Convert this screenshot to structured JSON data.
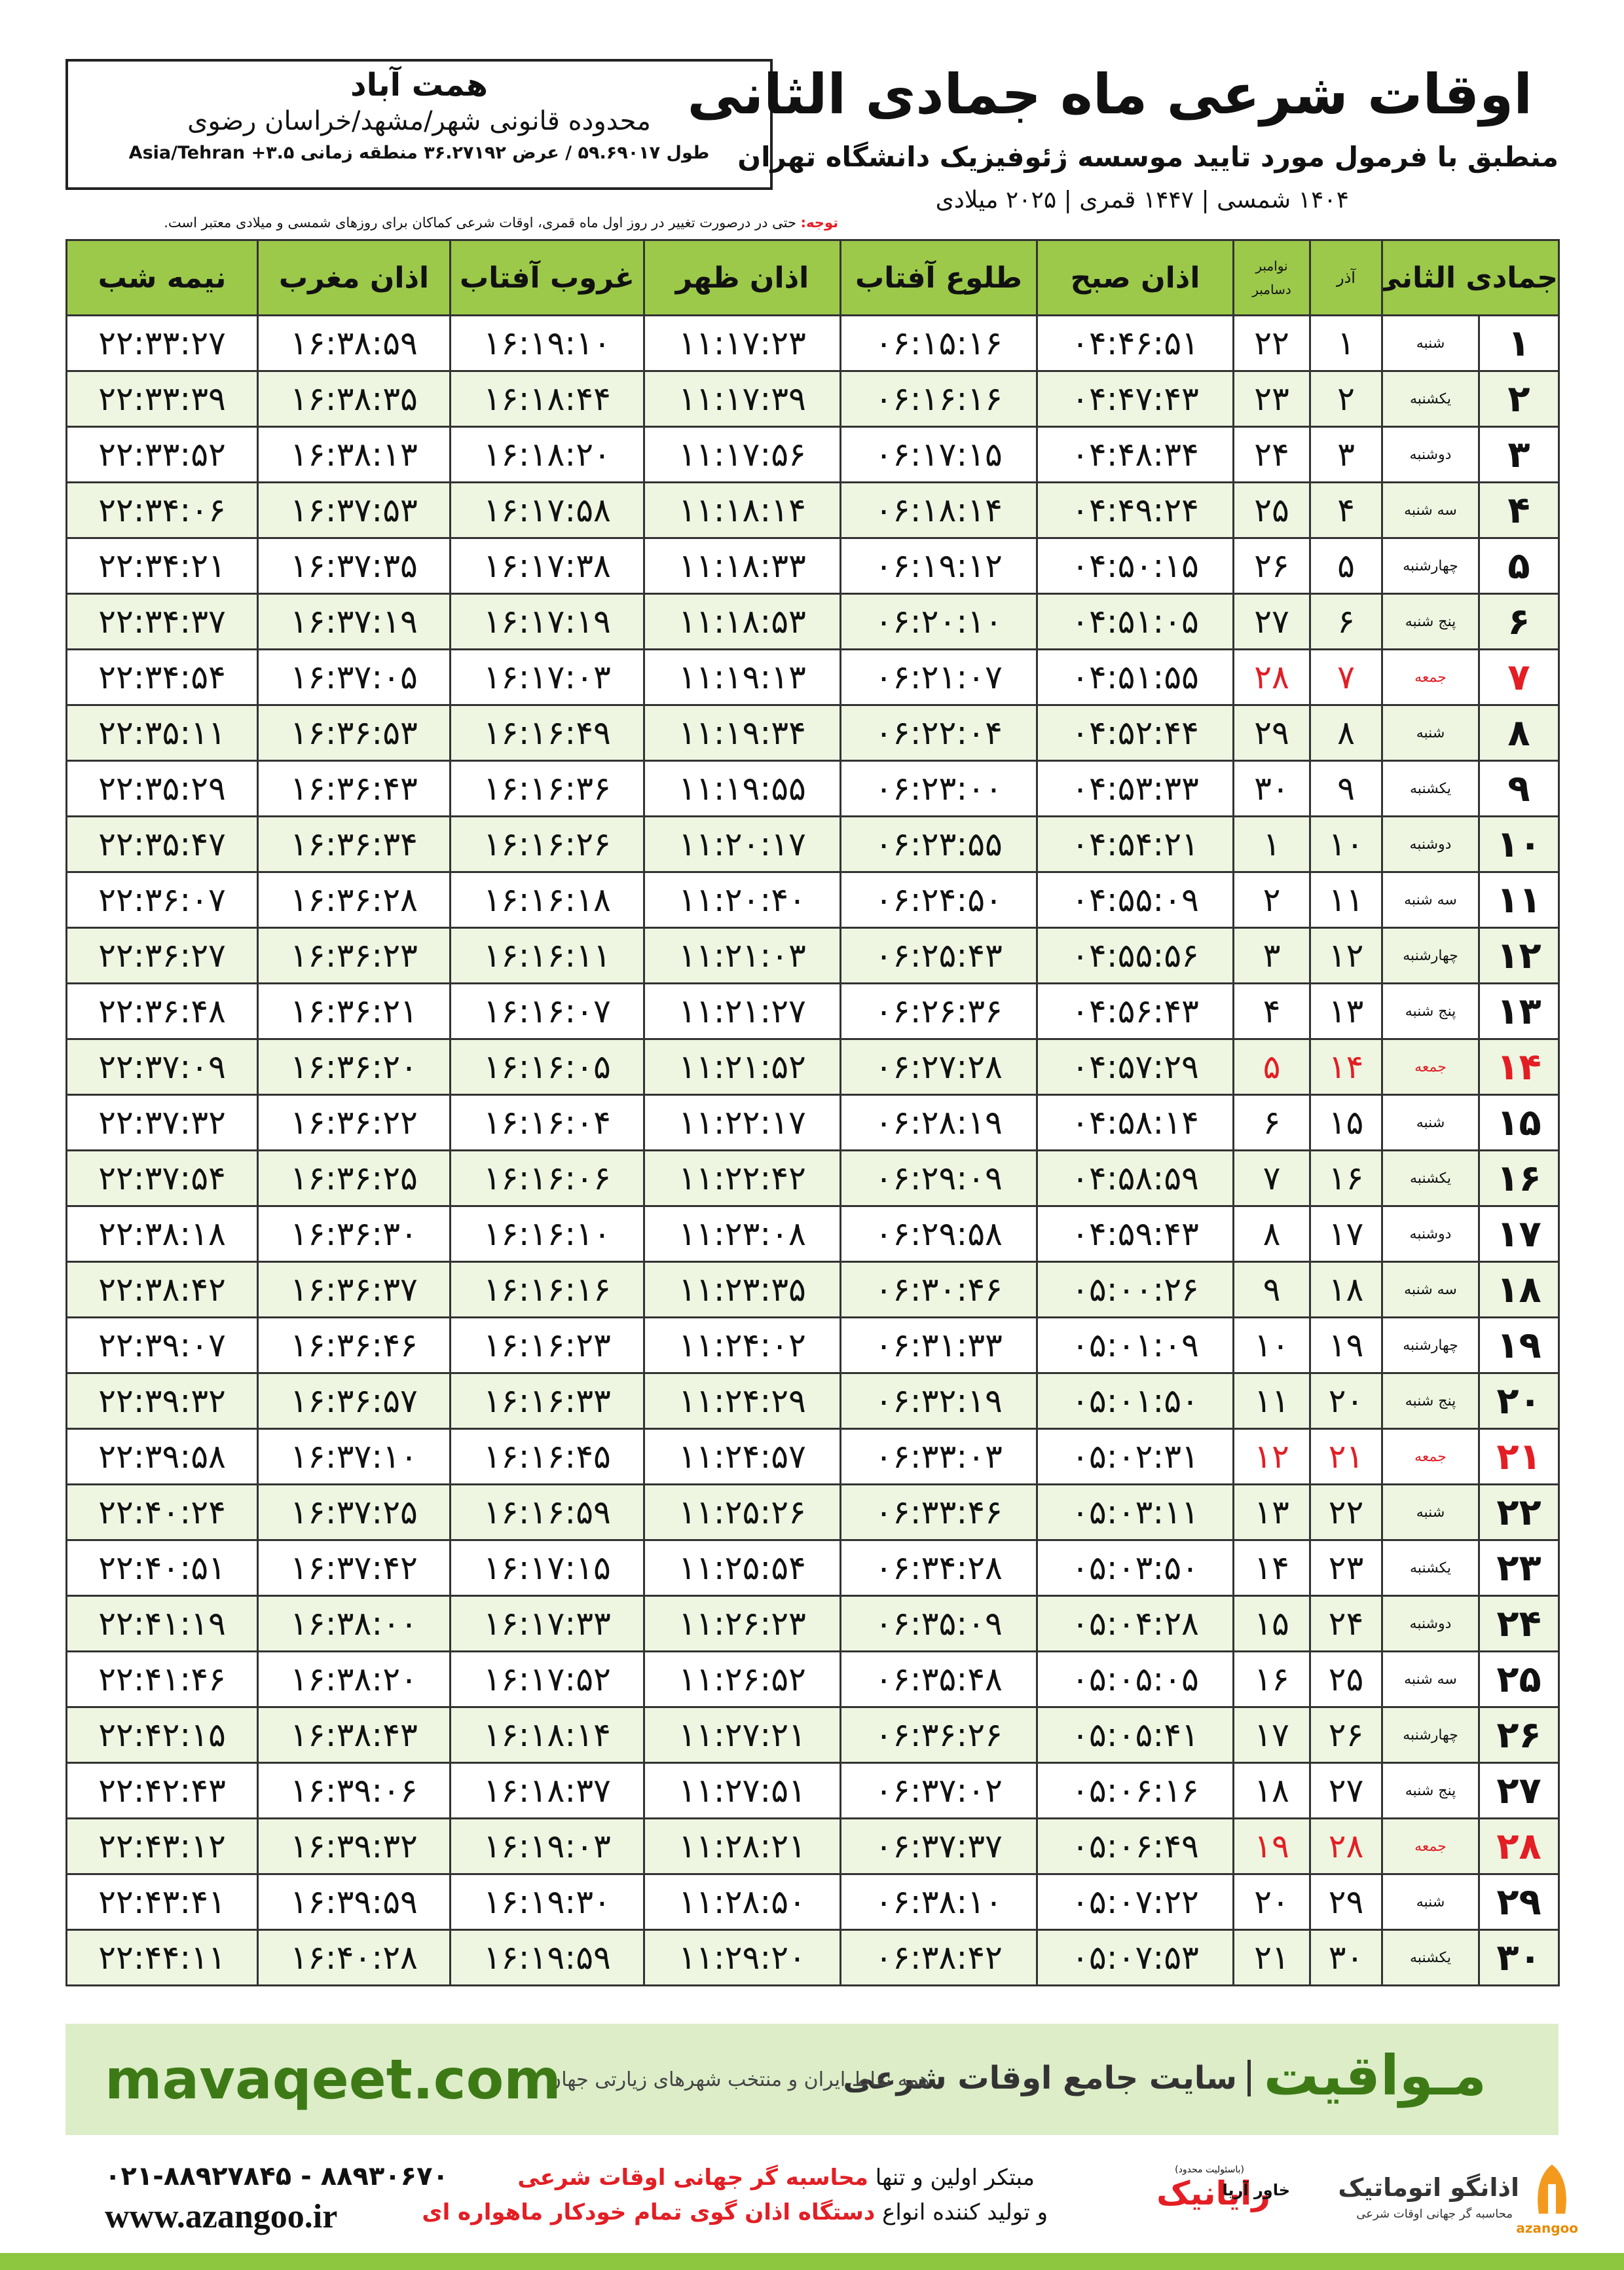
{
  "header": {
    "title": "اوقات شرعی ماه جمادی الثانی",
    "subtitle": "منطبق با فرمول مورد تایید موسسه ژئوفیزیک دانشگاه تهران",
    "dates": "۱۴۰۴ شمسی | ۱۴۴۷ قمری | ۲۰۲۵ میلادی"
  },
  "location": {
    "city": "همت آباد",
    "region": "محدوده قانونی شهر/مشهد/خراسان رضوی",
    "coords": "طول ۵۹.۶۹۰۱۷ / عرض ۳۶.۲۷۱۹۲ منطقه زمانی ۳.۵+ Asia/Tehran"
  },
  "note": {
    "label": "توجه:",
    "text": "حتی در درصورت تغییر در روز اول ماه قمری، اوقات شرعی کماکان برای روزهای شمسی و میلادی معتبر است."
  },
  "table": {
    "headers": {
      "hijri": "جمادی الثانی",
      "azar": "آذر",
      "gregorian": [
        "نوامبر",
        "دسامبر"
      ],
      "times": [
        "اذان صبح",
        "طلوع آفتاب",
        "اذان ظهر",
        "غروب آفتاب",
        "اذان مغرب",
        "نیمه شب"
      ]
    },
    "rows": [
      {
        "cells": [
          "۱",
          "شنبه",
          "۱",
          "۲۲",
          "۰۴:۴۶:۵۱",
          "۰۶:۱۵:۱۶",
          "۱۱:۱۷:۲۳",
          "۱۶:۱۹:۱۰",
          "۱۶:۳۸:۵۹",
          "۲۲:۳۳:۲۷"
        ]
      },
      {
        "cells": [
          "۲",
          "یکشنبه",
          "۲",
          "۲۳",
          "۰۴:۴۷:۴۳",
          "۰۶:۱۶:۱۶",
          "۱۱:۱۷:۳۹",
          "۱۶:۱۸:۴۴",
          "۱۶:۳۸:۳۵",
          "۲۲:۳۳:۳۹"
        ]
      },
      {
        "cells": [
          "۳",
          "دوشنبه",
          "۳",
          "۲۴",
          "۰۴:۴۸:۳۴",
          "۰۶:۱۷:۱۵",
          "۱۱:۱۷:۵۶",
          "۱۶:۱۸:۲۰",
          "۱۶:۳۸:۱۳",
          "۲۲:۳۳:۵۲"
        ]
      },
      {
        "cells": [
          "۴",
          "سه شنبه",
          "۴",
          "۲۵",
          "۰۴:۴۹:۲۴",
          "۰۶:۱۸:۱۴",
          "۱۱:۱۸:۱۴",
          "۱۶:۱۷:۵۸",
          "۱۶:۳۷:۵۳",
          "۲۲:۳۴:۰۶"
        ]
      },
      {
        "cells": [
          "۵",
          "چهارشنبه",
          "۵",
          "۲۶",
          "۰۴:۵۰:۱۵",
          "۰۶:۱۹:۱۲",
          "۱۱:۱۸:۳۳",
          "۱۶:۱۷:۳۸",
          "۱۶:۳۷:۳۵",
          "۲۲:۳۴:۲۱"
        ]
      },
      {
        "cells": [
          "۶",
          "پنج شنبه",
          "۶",
          "۲۷",
          "۰۴:۵۱:۰۵",
          "۰۶:۲۰:۱۰",
          "۱۱:۱۸:۵۳",
          "۱۶:۱۷:۱۹",
          "۱۶:۳۷:۱۹",
          "۲۲:۳۴:۳۷"
        ]
      },
      {
        "cells": [
          "۷",
          "جمعه",
          "۷",
          "۲۸",
          "۰۴:۵۱:۵۵",
          "۰۶:۲۱:۰۷",
          "۱۱:۱۹:۱۳",
          "۱۶:۱۷:۰۳",
          "۱۶:۳۷:۰۵",
          "۲۲:۳۴:۵۴"
        ],
        "color": "#e31e24"
      },
      {
        "cells": [
          "۸",
          "شنبه",
          "۸",
          "۲۹",
          "۰۴:۵۲:۴۴",
          "۰۶:۲۲:۰۴",
          "۱۱:۱۹:۳۴",
          "۱۶:۱۶:۴۹",
          "۱۶:۳۶:۵۳",
          "۲۲:۳۵:۱۱"
        ]
      },
      {
        "cells": [
          "۹",
          "یکشنبه",
          "۹",
          "۳۰",
          "۰۴:۵۳:۳۳",
          "۰۶:۲۳:۰۰",
          "۱۱:۱۹:۵۵",
          "۱۶:۱۶:۳۶",
          "۱۶:۳۶:۴۳",
          "۲۲:۳۵:۲۹"
        ]
      },
      {
        "cells": [
          "۱۰",
          "دوشنبه",
          "۱۰",
          "۱",
          "۰۴:۵۴:۲۱",
          "۰۶:۲۳:۵۵",
          "۱۱:۲۰:۱۷",
          "۱۶:۱۶:۲۶",
          "۱۶:۳۶:۳۴",
          "۲۲:۳۵:۴۷"
        ]
      },
      {
        "cells": [
          "۱۱",
          "سه شنبه",
          "۱۱",
          "۲",
          "۰۴:۵۵:۰۹",
          "۰۶:۲۴:۵۰",
          "۱۱:۲۰:۴۰",
          "۱۶:۱۶:۱۸",
          "۱۶:۳۶:۲۸",
          "۲۲:۳۶:۰۷"
        ]
      },
      {
        "cells": [
          "۱۲",
          "چهارشنبه",
          "۱۲",
          "۳",
          "۰۴:۵۵:۵۶",
          "۰۶:۲۵:۴۳",
          "۱۱:۲۱:۰۳",
          "۱۶:۱۶:۱۱",
          "۱۶:۳۶:۲۳",
          "۲۲:۳۶:۲۷"
        ]
      },
      {
        "cells": [
          "۱۳",
          "پنج شنبه",
          "۱۳",
          "۴",
          "۰۴:۵۶:۴۳",
          "۰۶:۲۶:۳۶",
          "۱۱:۲۱:۲۷",
          "۱۶:۱۶:۰۷",
          "۱۶:۳۶:۲۱",
          "۲۲:۳۶:۴۸"
        ]
      },
      {
        "cells": [
          "۱۴",
          "جمعه",
          "۱۴",
          "۵",
          "۰۴:۵۷:۲۹",
          "۰۶:۲۷:۲۸",
          "۱۱:۲۱:۵۲",
          "۱۶:۱۶:۰۵",
          "۱۶:۳۶:۲۰",
          "۲۲:۳۷:۰۹"
        ],
        "color": "#e31e24"
      },
      {
        "cells": [
          "۱۵",
          "شنبه",
          "۱۵",
          "۶",
          "۰۴:۵۸:۱۴",
          "۰۶:۲۸:۱۹",
          "۱۱:۲۲:۱۷",
          "۱۶:۱۶:۰۴",
          "۱۶:۳۶:۲۲",
          "۲۲:۳۷:۳۲"
        ]
      },
      {
        "cells": [
          "۱۶",
          "یکشنبه",
          "۱۶",
          "۷",
          "۰۴:۵۸:۵۹",
          "۰۶:۲۹:۰۹",
          "۱۱:۲۲:۴۲",
          "۱۶:۱۶:۰۶",
          "۱۶:۳۶:۲۵",
          "۲۲:۳۷:۵۴"
        ]
      },
      {
        "cells": [
          "۱۷",
          "دوشنبه",
          "۱۷",
          "۸",
          "۰۴:۵۹:۴۳",
          "۰۶:۲۹:۵۸",
          "۱۱:۲۳:۰۸",
          "۱۶:۱۶:۱۰",
          "۱۶:۳۶:۳۰",
          "۲۲:۳۸:۱۸"
        ]
      },
      {
        "cells": [
          "۱۸",
          "سه شنبه",
          "۱۸",
          "۹",
          "۰۵:۰۰:۲۶",
          "۰۶:۳۰:۴۶",
          "۱۱:۲۳:۳۵",
          "۱۶:۱۶:۱۶",
          "۱۶:۳۶:۳۷",
          "۲۲:۳۸:۴۲"
        ]
      },
      {
        "cells": [
          "۱۹",
          "چهارشنبه",
          "۱۹",
          "۱۰",
          "۰۵:۰۱:۰۹",
          "۰۶:۳۱:۳۳",
          "۱۱:۲۴:۰۲",
          "۱۶:۱۶:۲۳",
          "۱۶:۳۶:۴۶",
          "۲۲:۳۹:۰۷"
        ]
      },
      {
        "cells": [
          "۲۰",
          "پنج شنبه",
          "۲۰",
          "۱۱",
          "۰۵:۰۱:۵۰",
          "۰۶:۳۲:۱۹",
          "۱۱:۲۴:۲۹",
          "۱۶:۱۶:۳۳",
          "۱۶:۳۶:۵۷",
          "۲۲:۳۹:۳۲"
        ]
      },
      {
        "cells": [
          "۲۱",
          "جمعه",
          "۲۱",
          "۱۲",
          "۰۵:۰۲:۳۱",
          "۰۶:۳۳:۰۳",
          "۱۱:۲۴:۵۷",
          "۱۶:۱۶:۴۵",
          "۱۶:۳۷:۱۰",
          "۲۲:۳۹:۵۸"
        ],
        "color": "#e31e24"
      },
      {
        "cells": [
          "۲۲",
          "شنبه",
          "۲۲",
          "۱۳",
          "۰۵:۰۳:۱۱",
          "۰۶:۳۳:۴۶",
          "۱۱:۲۵:۲۶",
          "۱۶:۱۶:۵۹",
          "۱۶:۳۷:۲۵",
          "۲۲:۴۰:۲۴"
        ]
      },
      {
        "cells": [
          "۲۳",
          "یکشنبه",
          "۲۳",
          "۱۴",
          "۰۵:۰۳:۵۰",
          "۰۶:۳۴:۲۸",
          "۱۱:۲۵:۵۴",
          "۱۶:۱۷:۱۵",
          "۱۶:۳۷:۴۲",
          "۲۲:۴۰:۵۱"
        ]
      },
      {
        "cells": [
          "۲۴",
          "دوشنبه",
          "۲۴",
          "۱۵",
          "۰۵:۰۴:۲۸",
          "۰۶:۳۵:۰۹",
          "۱۱:۲۶:۲۳",
          "۱۶:۱۷:۳۳",
          "۱۶:۳۸:۰۰",
          "۲۲:۴۱:۱۹"
        ]
      },
      {
        "cells": [
          "۲۵",
          "سه شنبه",
          "۲۵",
          "۱۶",
          "۰۵:۰۵:۰۵",
          "۰۶:۳۵:۴۸",
          "۱۱:۲۶:۵۲",
          "۱۶:۱۷:۵۲",
          "۱۶:۳۸:۲۰",
          "۲۲:۴۱:۴۶"
        ]
      },
      {
        "cells": [
          "۲۶",
          "چهارشنبه",
          "۲۶",
          "۱۷",
          "۰۵:۰۵:۴۱",
          "۰۶:۳۶:۲۶",
          "۱۱:۲۷:۲۱",
          "۱۶:۱۸:۱۴",
          "۱۶:۳۸:۴۳",
          "۲۲:۴۲:۱۵"
        ]
      },
      {
        "cells": [
          "۲۷",
          "پنج شنبه",
          "۲۷",
          "۱۸",
          "۰۵:۰۶:۱۶",
          "۰۶:۳۷:۰۲",
          "۱۱:۲۷:۵۱",
          "۱۶:۱۸:۳۷",
          "۱۶:۳۹:۰۶",
          "۲۲:۴۲:۴۳"
        ]
      },
      {
        "cells": [
          "۲۸",
          "جمعه",
          "۲۸",
          "۱۹",
          "۰۵:۰۶:۴۹",
          "۰۶:۳۷:۳۷",
          "۱۱:۲۸:۲۱",
          "۱۶:۱۹:۰۳",
          "۱۶:۳۹:۳۲",
          "۲۲:۴۳:۱۲"
        ],
        "color": "#e31e24"
      },
      {
        "cells": [
          "۲۹",
          "شنبه",
          "۲۹",
          "۲۰",
          "۰۵:۰۷:۲۲",
          "۰۶:۳۸:۱۰",
          "۱۱:۲۸:۵۰",
          "۱۶:۱۹:۳۰",
          "۱۶:۳۹:۵۹",
          "۲۲:۴۳:۴۱"
        ]
      },
      {
        "cells": [
          "۳۰",
          "یکشنبه",
          "۳۰",
          "۲۱",
          "۰۵:۰۷:۵۳",
          "۰۶:۳۸:۴۲",
          "۱۱:۲۹:۲۰",
          "۱۶:۱۹:۵۹",
          "۱۶:۴۰:۲۸",
          "۲۲:۴۴:۱۱"
        ]
      }
    ]
  },
  "banner": {
    "brand": "مـواقیت",
    "tagline": "سایت جامع اوقات شرعی",
    "subline": "همه نقاط ایران و منتخب شهرهای زیارتی جهان",
    "url": "mavaqeet.com"
  },
  "footer": {
    "phones": "۰۲۱-۸۸۹۲۷۸۴۵ - ۸۸۹۳۰۶۷۰",
    "website": "www.azangoo.ir",
    "line1": [
      "مبتکر اولین و تنها ",
      "محاسبه گر جهانی اوقات شرعی"
    ],
    "line2": [
      "و تولید کننده انواع ",
      "دستگاه اذان گوی تمام خودکار ماهواره ای"
    ],
    "rayanik": "رایانیک",
    "khavar": "خاور آریا",
    "limited": "(باسئولیت محدود)",
    "azangoo_title": "اذانگو اتوماتیک",
    "azangoo_sub": "محاسبه گر جهانی اوقات شرعی",
    "azangoo_latin": "azangoo"
  }
}
